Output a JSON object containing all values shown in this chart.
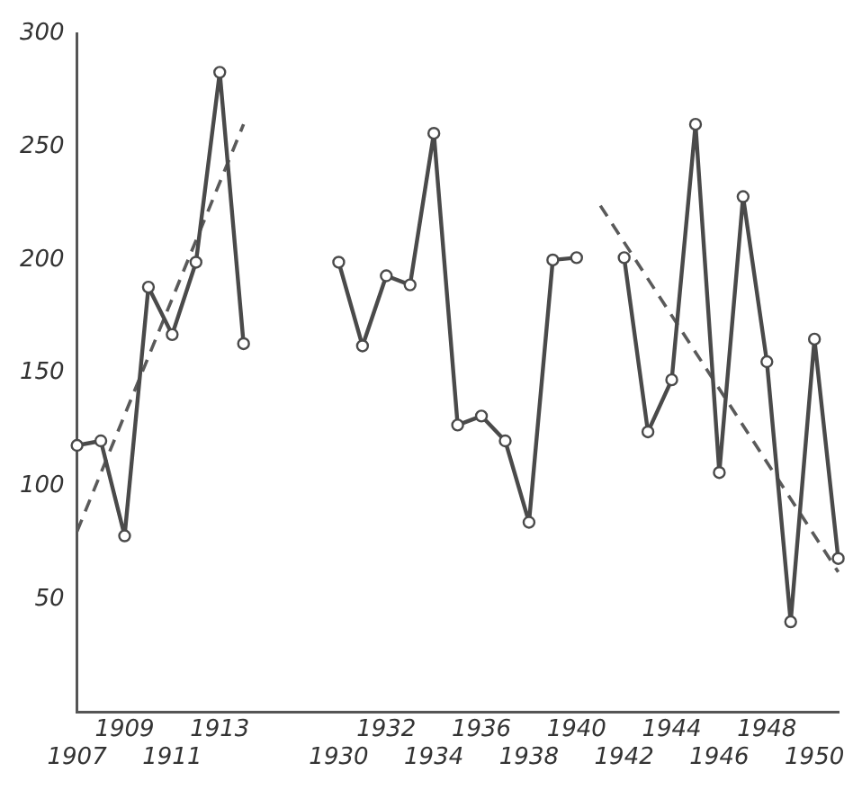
{
  "chart_data": {
    "type": "line",
    "categories": [
      "1907",
      null,
      "1909",
      null,
      "1911",
      null,
      "1913",
      null,
      null,
      null,
      null,
      "1930",
      null,
      "1932",
      null,
      "1934",
      null,
      "1936",
      null,
      "1938",
      null,
      "1940",
      null,
      "1942",
      null,
      "1944",
      null,
      "1946",
      null,
      "1948",
      null,
      "1950",
      null
    ],
    "series": [
      {
        "color": "#4a4a4a",
        "marker": "circle",
        "line_style": "solid",
        "values": [
          118,
          120,
          78,
          188,
          167,
          199,
          283,
          163,
          null,
          null,
          null,
          199,
          162,
          193,
          189,
          256,
          127,
          131,
          120,
          84,
          200,
          201,
          null,
          201,
          124,
          147,
          260,
          106,
          228,
          155,
          40,
          165,
          68
        ]
      },
      {
        "type": "line",
        "color": "#5a5a5a",
        "marker": "none",
        "line_style": "dashed",
        "values": [
          80,
          null,
          null,
          null,
          null,
          null,
          null,
          260,
          null,
          null,
          null,
          null,
          null,
          null,
          null,
          null,
          null,
          null,
          null,
          null,
          null,
          null,
          null,
          null,
          null,
          null,
          null,
          null,
          null,
          null,
          null,
          null,
          null
        ]
      },
      {
        "type": "line",
        "color": "#5a5a5a",
        "marker": "none",
        "line_style": "dashed",
        "values": [
          null,
          null,
          null,
          null,
          null,
          null,
          null,
          null,
          null,
          null,
          null,
          null,
          null,
          null,
          null,
          null,
          null,
          null,
          null,
          null,
          null,
          null,
          224,
          null,
          null,
          null,
          null,
          null,
          null,
          null,
          null,
          null,
          62
        ]
      }
    ],
    "ylim": [
      0,
      300
    ],
    "yticks": [
      50,
      100,
      150,
      200,
      250,
      300
    ],
    "grid": false,
    "legend": false
  }
}
